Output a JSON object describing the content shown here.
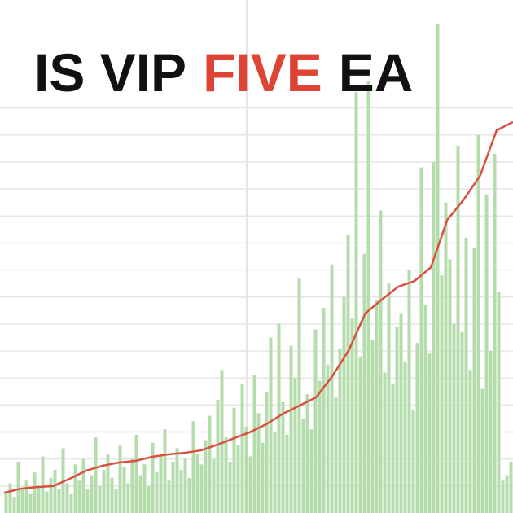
{
  "chart_data": {
    "type": "bar",
    "title_parts": [
      {
        "text": "IS VIP",
        "color": "#111111"
      },
      {
        "text": "FIVE",
        "color": "#dd4433"
      },
      {
        "text": "EA",
        "color": "#111111"
      }
    ],
    "ylim": [
      0,
      19
    ],
    "yticks": [
      1,
      2,
      3,
      4,
      5,
      6,
      7,
      8,
      9,
      10,
      11,
      12,
      13,
      14,
      15
    ],
    "grid": true,
    "bars": {
      "color": "#b5dcac",
      "values": [
        0.8,
        1.1,
        0.6,
        1.9,
        0.9,
        1.2,
        0.7,
        1.5,
        1.0,
        2.1,
        0.8,
        1.3,
        1.6,
        0.9,
        2.4,
        1.1,
        0.7,
        1.8,
        1.2,
        2.0,
        0.9,
        1.4,
        2.8,
        1.0,
        1.6,
        2.2,
        1.3,
        0.9,
        2.5,
        1.7,
        1.1,
        2.0,
        2.9,
        1.4,
        1.8,
        1.0,
        2.6,
        1.5,
        2.1,
        3.1,
        1.2,
        1.9,
        2.4,
        1.6,
        2.0,
        1.3,
        3.4,
        2.2,
        1.8,
        2.7,
        3.6,
        2.0,
        4.2,
        5.3,
        2.8,
        1.9,
        3.9,
        2.5,
        4.8,
        3.2,
        2.1,
        5.1,
        3.7,
        2.6,
        4.5,
        6.5,
        3.0,
        7.0,
        4.1,
        2.9,
        6.2,
        5.0,
        8.7,
        3.5,
        4.4,
        3.1,
        6.8,
        4.9,
        7.6,
        5.5,
        9.2,
        4.3,
        6.1,
        8.0,
        10.3,
        7.2,
        15.6,
        5.8,
        9.6,
        16.0,
        6.4,
        7.9,
        11.2,
        5.2,
        8.5,
        4.8,
        6.9,
        7.4,
        5.6,
        9.0,
        3.8,
        6.3,
        12.8,
        7.7,
        5.9,
        13.0,
        18.1,
        8.8,
        11.5,
        9.4,
        7.0,
        13.6,
        6.7,
        10.2,
        5.3,
        9.8,
        14.0,
        4.6,
        11.8,
        6.0,
        13.3,
        8.2,
        1.2,
        1.4,
        1.9
      ]
    },
    "line": {
      "color": "#d9503f",
      "values": [
        0.75,
        0.9,
        0.96,
        1.0,
        1.27,
        1.57,
        1.75,
        1.87,
        1.93,
        2.08,
        2.17,
        2.23,
        2.32,
        2.53,
        2.77,
        3.0,
        3.3,
        3.68,
        3.98,
        4.28,
        5.07,
        6.03,
        7.39,
        7.9,
        8.38,
        8.59,
        9.1,
        10.86,
        11.61,
        12.5,
        14.17,
        14.48
      ]
    }
  }
}
